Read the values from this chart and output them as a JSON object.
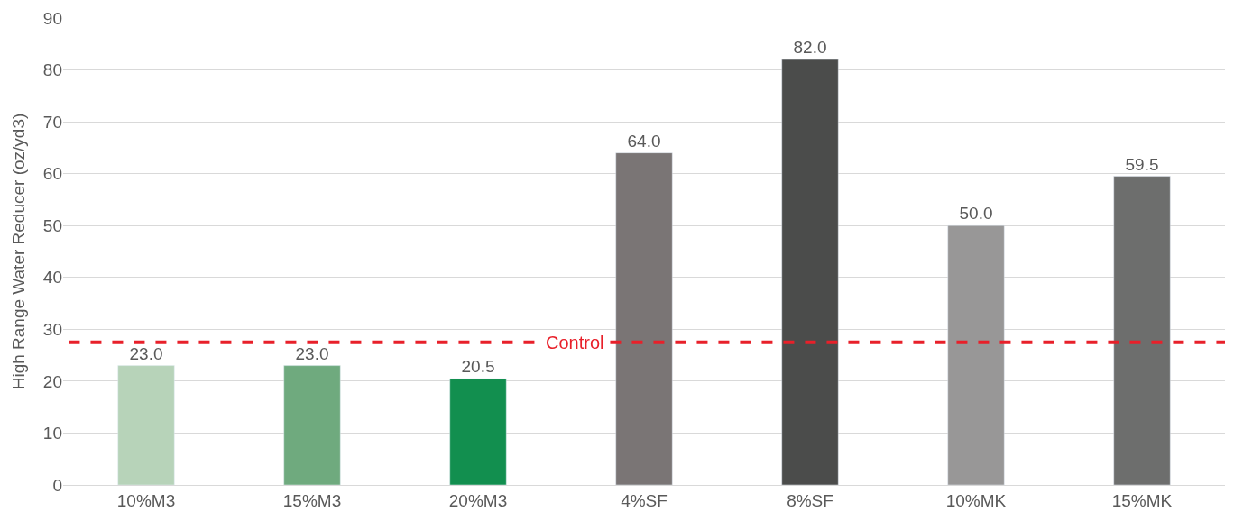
{
  "chart_data": {
    "type": "bar",
    "ylabel": "High Range Water Reducer (oz/yd3)",
    "categories": [
      "10%M3",
      "15%M3",
      "20%M3",
      "4%SF",
      "8%SF",
      "10%MK",
      "15%MK"
    ],
    "values": [
      23,
      23,
      20.5,
      64,
      82,
      50,
      59.5
    ],
    "value_labels": [
      "23.0",
      "23.0",
      "20.5",
      "64.0",
      "82.0",
      "50.0",
      "59.5"
    ],
    "colors": [
      "#b7d3b9",
      "#6faa7e",
      "#128f4f",
      "#7a7575",
      "#4b4c4b",
      "#989797",
      "#6d6e6d"
    ],
    "ylim": [
      0,
      90
    ],
    "yticks": [
      0,
      10,
      20,
      30,
      40,
      50,
      60,
      70,
      80,
      90
    ],
    "grid": "y",
    "legend": false,
    "ref_lines": [
      {
        "axis": "y",
        "value": 27.5,
        "label": "Control",
        "color": "#e8202a",
        "line_style": "dashed"
      }
    ]
  }
}
